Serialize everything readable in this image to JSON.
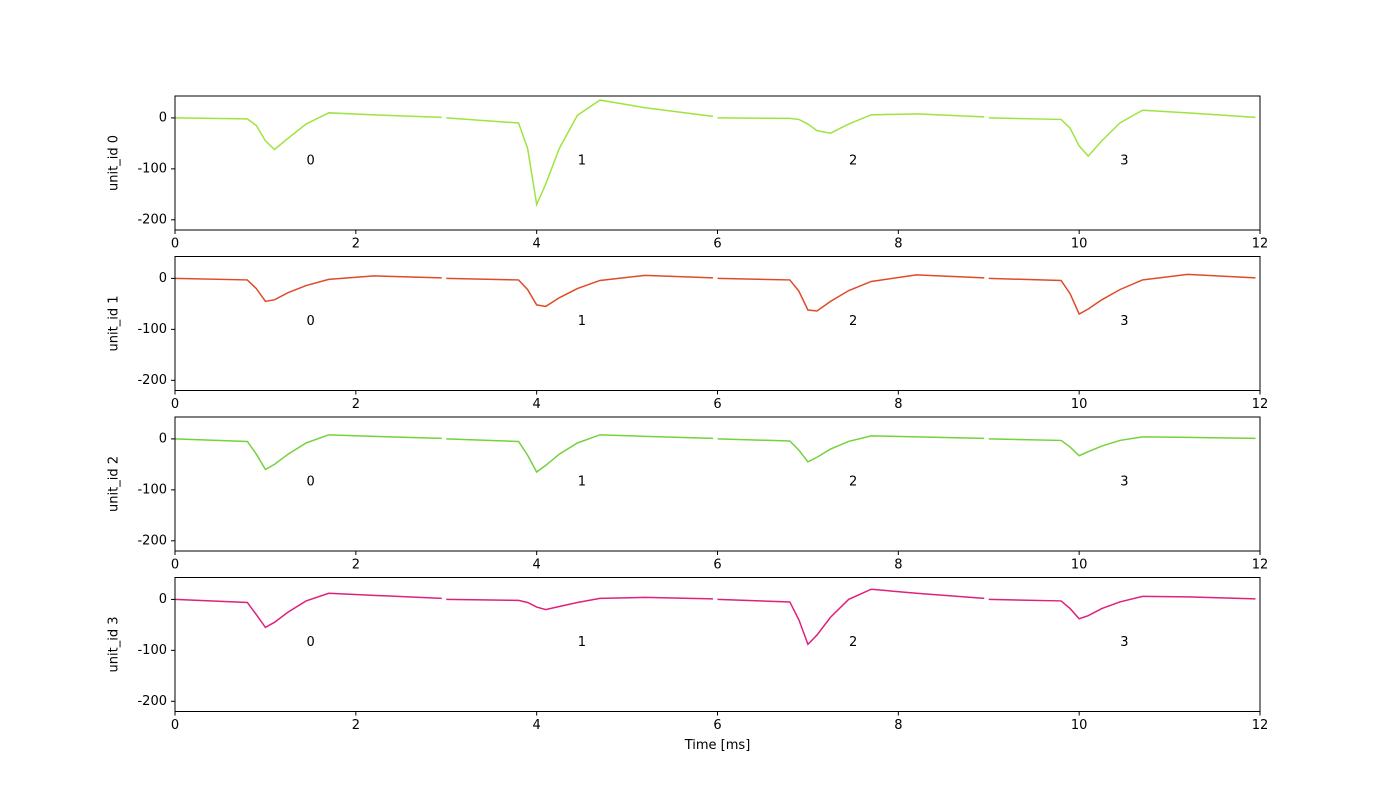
{
  "chart_data": [
    {
      "type": "line",
      "ylabel": "unit_id 0",
      "xlim": [
        0,
        12
      ],
      "ylim": [
        -220,
        43
      ],
      "xticks": [
        0,
        2,
        4,
        6,
        8,
        10,
        12
      ],
      "yticks": [
        -200,
        -100,
        0
      ],
      "x": [
        0,
        0.8,
        0.9,
        1,
        1.1,
        1.25,
        1.45,
        1.7,
        2.2,
        2.95,
        2.975,
        3,
        3.8,
        3.9,
        4,
        4.1,
        4.25,
        4.45,
        4.7,
        5.2,
        5.95,
        5.975,
        6,
        6.8,
        6.9,
        7,
        7.1,
        7.25,
        7.45,
        7.7,
        8.2,
        8.95,
        8.975,
        9,
        9.8,
        9.9,
        10,
        10.1,
        10.25,
        10.45,
        10.7,
        11.2,
        11.95
      ],
      "series": [
        {
          "color": "#9ee440",
          "values": [
            0,
            -2,
            -15,
            -45,
            -62,
            -40,
            -12,
            10,
            6,
            1,
            null,
            0,
            -10,
            -60,
            -170,
            -130,
            -60,
            5,
            35,
            20,
            3,
            null,
            0,
            -1,
            -3,
            -12,
            -25,
            -30,
            -12,
            6,
            8,
            2,
            null,
            0,
            -3,
            -20,
            -55,
            -75,
            -45,
            -10,
            15,
            10,
            1
          ]
        }
      ],
      "annotations": [
        {
          "text": "0",
          "x": 1.5,
          "y": -85
        },
        {
          "text": "1",
          "x": 4.5,
          "y": -85
        },
        {
          "text": "2",
          "x": 7.5,
          "y": -85
        },
        {
          "text": "3",
          "x": 10.5,
          "y": -85
        }
      ]
    },
    {
      "type": "line",
      "ylabel": "unit_id 1",
      "xlim": [
        0,
        12
      ],
      "ylim": [
        -220,
        43
      ],
      "xticks": [
        0,
        2,
        4,
        6,
        8,
        10,
        12
      ],
      "yticks": [
        -200,
        -100,
        0
      ],
      "x": [
        0,
        0.8,
        0.9,
        1,
        1.1,
        1.25,
        1.45,
        1.7,
        2.2,
        2.95,
        2.975,
        3,
        3.8,
        3.9,
        4,
        4.1,
        4.25,
        4.45,
        4.7,
        5.2,
        5.95,
        5.975,
        6,
        6.8,
        6.9,
        7,
        7.1,
        7.25,
        7.45,
        7.7,
        8.2,
        8.95,
        8.975,
        9,
        9.8,
        9.9,
        10,
        10.1,
        10.25,
        10.45,
        10.7,
        11.2,
        11.95
      ],
      "series": [
        {
          "color": "#e04a28",
          "values": [
            0,
            -3,
            -20,
            -45,
            -42,
            -28,
            -14,
            -2,
            5,
            1,
            null,
            0,
            -3,
            -22,
            -52,
            -55,
            -38,
            -20,
            -4,
            6,
            1,
            null,
            0,
            -3,
            -25,
            -62,
            -64,
            -45,
            -24,
            -6,
            7,
            1,
            null,
            0,
            -4,
            -30,
            -70,
            -60,
            -42,
            -22,
            -3,
            8,
            1
          ]
        }
      ],
      "annotations": [
        {
          "text": "0",
          "x": 1.5,
          "y": -85
        },
        {
          "text": "1",
          "x": 4.5,
          "y": -85
        },
        {
          "text": "2",
          "x": 7.5,
          "y": -85
        },
        {
          "text": "3",
          "x": 10.5,
          "y": -85
        }
      ]
    },
    {
      "type": "line",
      "ylabel": "unit_id 2",
      "xlim": [
        0,
        12
      ],
      "ylim": [
        -220,
        43
      ],
      "xticks": [
        0,
        2,
        4,
        6,
        8,
        10,
        12
      ],
      "yticks": [
        -200,
        -100,
        0
      ],
      "x": [
        0,
        0.8,
        0.9,
        1,
        1.1,
        1.25,
        1.45,
        1.7,
        2.2,
        2.95,
        2.975,
        3,
        3.8,
        3.9,
        4,
        4.1,
        4.25,
        4.45,
        4.7,
        5.2,
        5.95,
        5.975,
        6,
        6.8,
        6.9,
        7,
        7.1,
        7.25,
        7.45,
        7.7,
        8.2,
        8.95,
        8.975,
        9,
        9.8,
        9.9,
        10,
        10.1,
        10.25,
        10.45,
        10.7,
        11.2,
        11.95
      ],
      "series": [
        {
          "color": "#74d23c",
          "values": [
            0,
            -5,
            -30,
            -60,
            -50,
            -30,
            -8,
            8,
            5,
            1,
            null,
            0,
            -5,
            -32,
            -65,
            -52,
            -30,
            -8,
            8,
            5,
            1,
            null,
            0,
            -4,
            -22,
            -45,
            -36,
            -20,
            -5,
            6,
            4,
            1,
            null,
            0,
            -3,
            -16,
            -33,
            -25,
            -14,
            -3,
            4,
            3,
            1
          ]
        }
      ],
      "annotations": [
        {
          "text": "0",
          "x": 1.5,
          "y": -85
        },
        {
          "text": "1",
          "x": 4.5,
          "y": -85
        },
        {
          "text": "2",
          "x": 7.5,
          "y": -85
        },
        {
          "text": "3",
          "x": 10.5,
          "y": -85
        }
      ]
    },
    {
      "type": "line",
      "ylabel": "unit_id 3",
      "xlabel": "Time [ms]",
      "xlim": [
        0,
        12
      ],
      "ylim": [
        -220,
        43
      ],
      "xticks": [
        0,
        2,
        4,
        6,
        8,
        10,
        12
      ],
      "yticks": [
        -200,
        -100,
        0
      ],
      "x": [
        0,
        0.8,
        0.9,
        1,
        1.1,
        1.25,
        1.45,
        1.7,
        2.2,
        2.95,
        2.975,
        3,
        3.8,
        3.9,
        4,
        4.1,
        4.25,
        4.45,
        4.7,
        5.2,
        5.95,
        5.975,
        6,
        6.8,
        6.9,
        7,
        7.1,
        7.25,
        7.45,
        7.7,
        8.2,
        8.95,
        8.975,
        9,
        9.8,
        9.9,
        10,
        10.1,
        10.25,
        10.45,
        10.7,
        11.2,
        11.95
      ],
      "series": [
        {
          "color": "#e0207a",
          "values": [
            0,
            -6,
            -30,
            -55,
            -45,
            -25,
            -3,
            12,
            8,
            2,
            null,
            0,
            -2,
            -6,
            -15,
            -20,
            -14,
            -6,
            2,
            4,
            1,
            null,
            0,
            -5,
            -40,
            -88,
            -70,
            -35,
            0,
            20,
            12,
            2,
            null,
            0,
            -3,
            -18,
            -38,
            -32,
            -18,
            -5,
            6,
            5,
            1
          ]
        }
      ],
      "annotations": [
        {
          "text": "0",
          "x": 1.5,
          "y": -85
        },
        {
          "text": "1",
          "x": 4.5,
          "y": -85
        },
        {
          "text": "2",
          "x": 7.5,
          "y": -85
        },
        {
          "text": "3",
          "x": 10.5,
          "y": -85
        }
      ]
    }
  ]
}
